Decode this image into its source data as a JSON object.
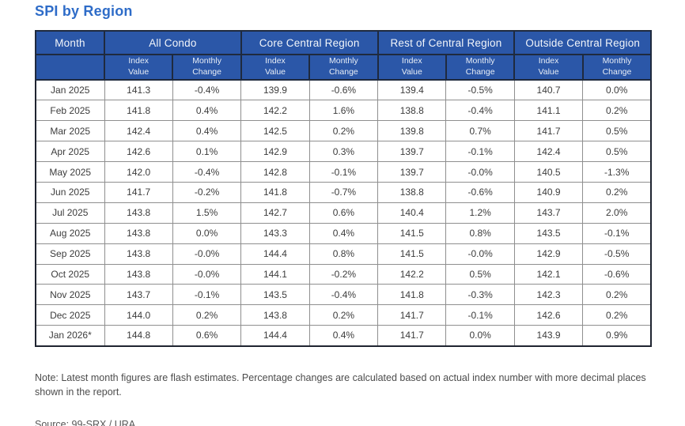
{
  "note": "Note: Latest month figures are flash estimates. Percentage changes are calculated based on actual index number with more decimal places shown in the report.",
  "source": "Source: 99-SRX / URA",
  "colors": {
    "title_blue": "#2e6cc8",
    "header_bg": "#2b57a8",
    "header_text": "#f2f5fa",
    "cell_border": "#8f8f8f",
    "dark_border": "#1f2a3e",
    "body_text": "#3c3c3c"
  },
  "chart_data": {
    "type": "table",
    "title": "SPI by Region",
    "column_groups": [
      "Month",
      "All Condo",
      "Core Central Region",
      "Rest of Central Region",
      "Outside Central Region"
    ],
    "sub_columns": [
      "Index\nValue",
      "Monthly\nChange"
    ],
    "rows": [
      [
        "Jan 2025",
        "141.3",
        "-0.4%",
        "139.9",
        "-0.6%",
        "139.4",
        "-0.5%",
        "140.7",
        "0.0%"
      ],
      [
        "Feb 2025",
        "141.8",
        "0.4%",
        "142.2",
        "1.6%",
        "138.8",
        "-0.4%",
        "141.1",
        "0.2%"
      ],
      [
        "Mar 2025",
        "142.4",
        "0.4%",
        "142.5",
        "0.2%",
        "139.8",
        "0.7%",
        "141.7",
        "0.5%"
      ],
      [
        "Apr 2025",
        "142.6",
        "0.1%",
        "142.9",
        "0.3%",
        "139.7",
        "-0.1%",
        "142.4",
        "0.5%"
      ],
      [
        "May 2025",
        "142.0",
        "-0.4%",
        "142.8",
        "-0.1%",
        "139.7",
        "-0.0%",
        "140.5",
        "-1.3%"
      ],
      [
        "Jun 2025",
        "141.7",
        "-0.2%",
        "141.8",
        "-0.7%",
        "138.8",
        "-0.6%",
        "140.9",
        "0.2%"
      ],
      [
        "Jul 2025",
        "143.8",
        "1.5%",
        "142.7",
        "0.6%",
        "140.4",
        "1.2%",
        "143.7",
        "2.0%"
      ],
      [
        "Aug 2025",
        "143.8",
        "0.0%",
        "143.3",
        "0.4%",
        "141.5",
        "0.8%",
        "143.5",
        "-0.1%"
      ],
      [
        "Sep 2025",
        "143.8",
        "-0.0%",
        "144.4",
        "0.8%",
        "141.5",
        "-0.0%",
        "142.9",
        "-0.5%"
      ],
      [
        "Oct 2025",
        "143.8",
        "-0.0%",
        "144.1",
        "-0.2%",
        "142.2",
        "0.5%",
        "142.1",
        "-0.6%"
      ],
      [
        "Nov 2025",
        "143.7",
        "-0.1%",
        "143.5",
        "-0.4%",
        "141.8",
        "-0.3%",
        "142.3",
        "0.2%"
      ],
      [
        "Dec 2025",
        "144.0",
        "0.2%",
        "143.8",
        "0.2%",
        "141.7",
        "-0.1%",
        "142.6",
        "0.2%"
      ],
      [
        "Jan 2026*",
        "144.8",
        "0.6%",
        "144.4",
        "0.4%",
        "141.7",
        "0.0%",
        "143.9",
        "0.9%"
      ]
    ]
  }
}
